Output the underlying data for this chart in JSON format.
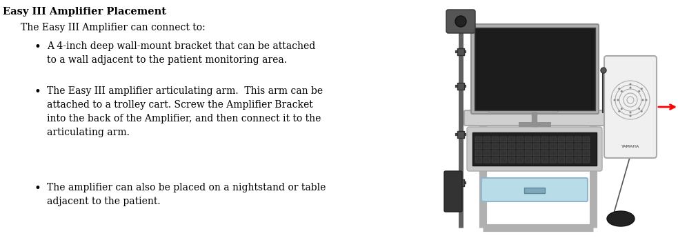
{
  "title": "Easy III Amplifier Placement",
  "intro": "The Easy III Amplifier can connect to:",
  "bullet1": "A 4-inch deep wall-mount bracket that can be attached\nto a wall adjacent to the patient monitoring area.",
  "bullet2": "The Easy III amplifier articulating arm.  This arm can be\nattached to a trolley cart. Screw the Amplifier Bracket\ninto the back of the Amplifier, and then connect it to the\narticulating arm.",
  "bullet3": "The amplifier can also be placed on a nightstand or table\nadjacent to the patient.",
  "bg_color": "#ffffff",
  "text_color": "#000000",
  "title_fontsize": 10.5,
  "body_fontsize": 10.0,
  "figsize": [
    9.83,
    3.45
  ],
  "dpi": 100
}
